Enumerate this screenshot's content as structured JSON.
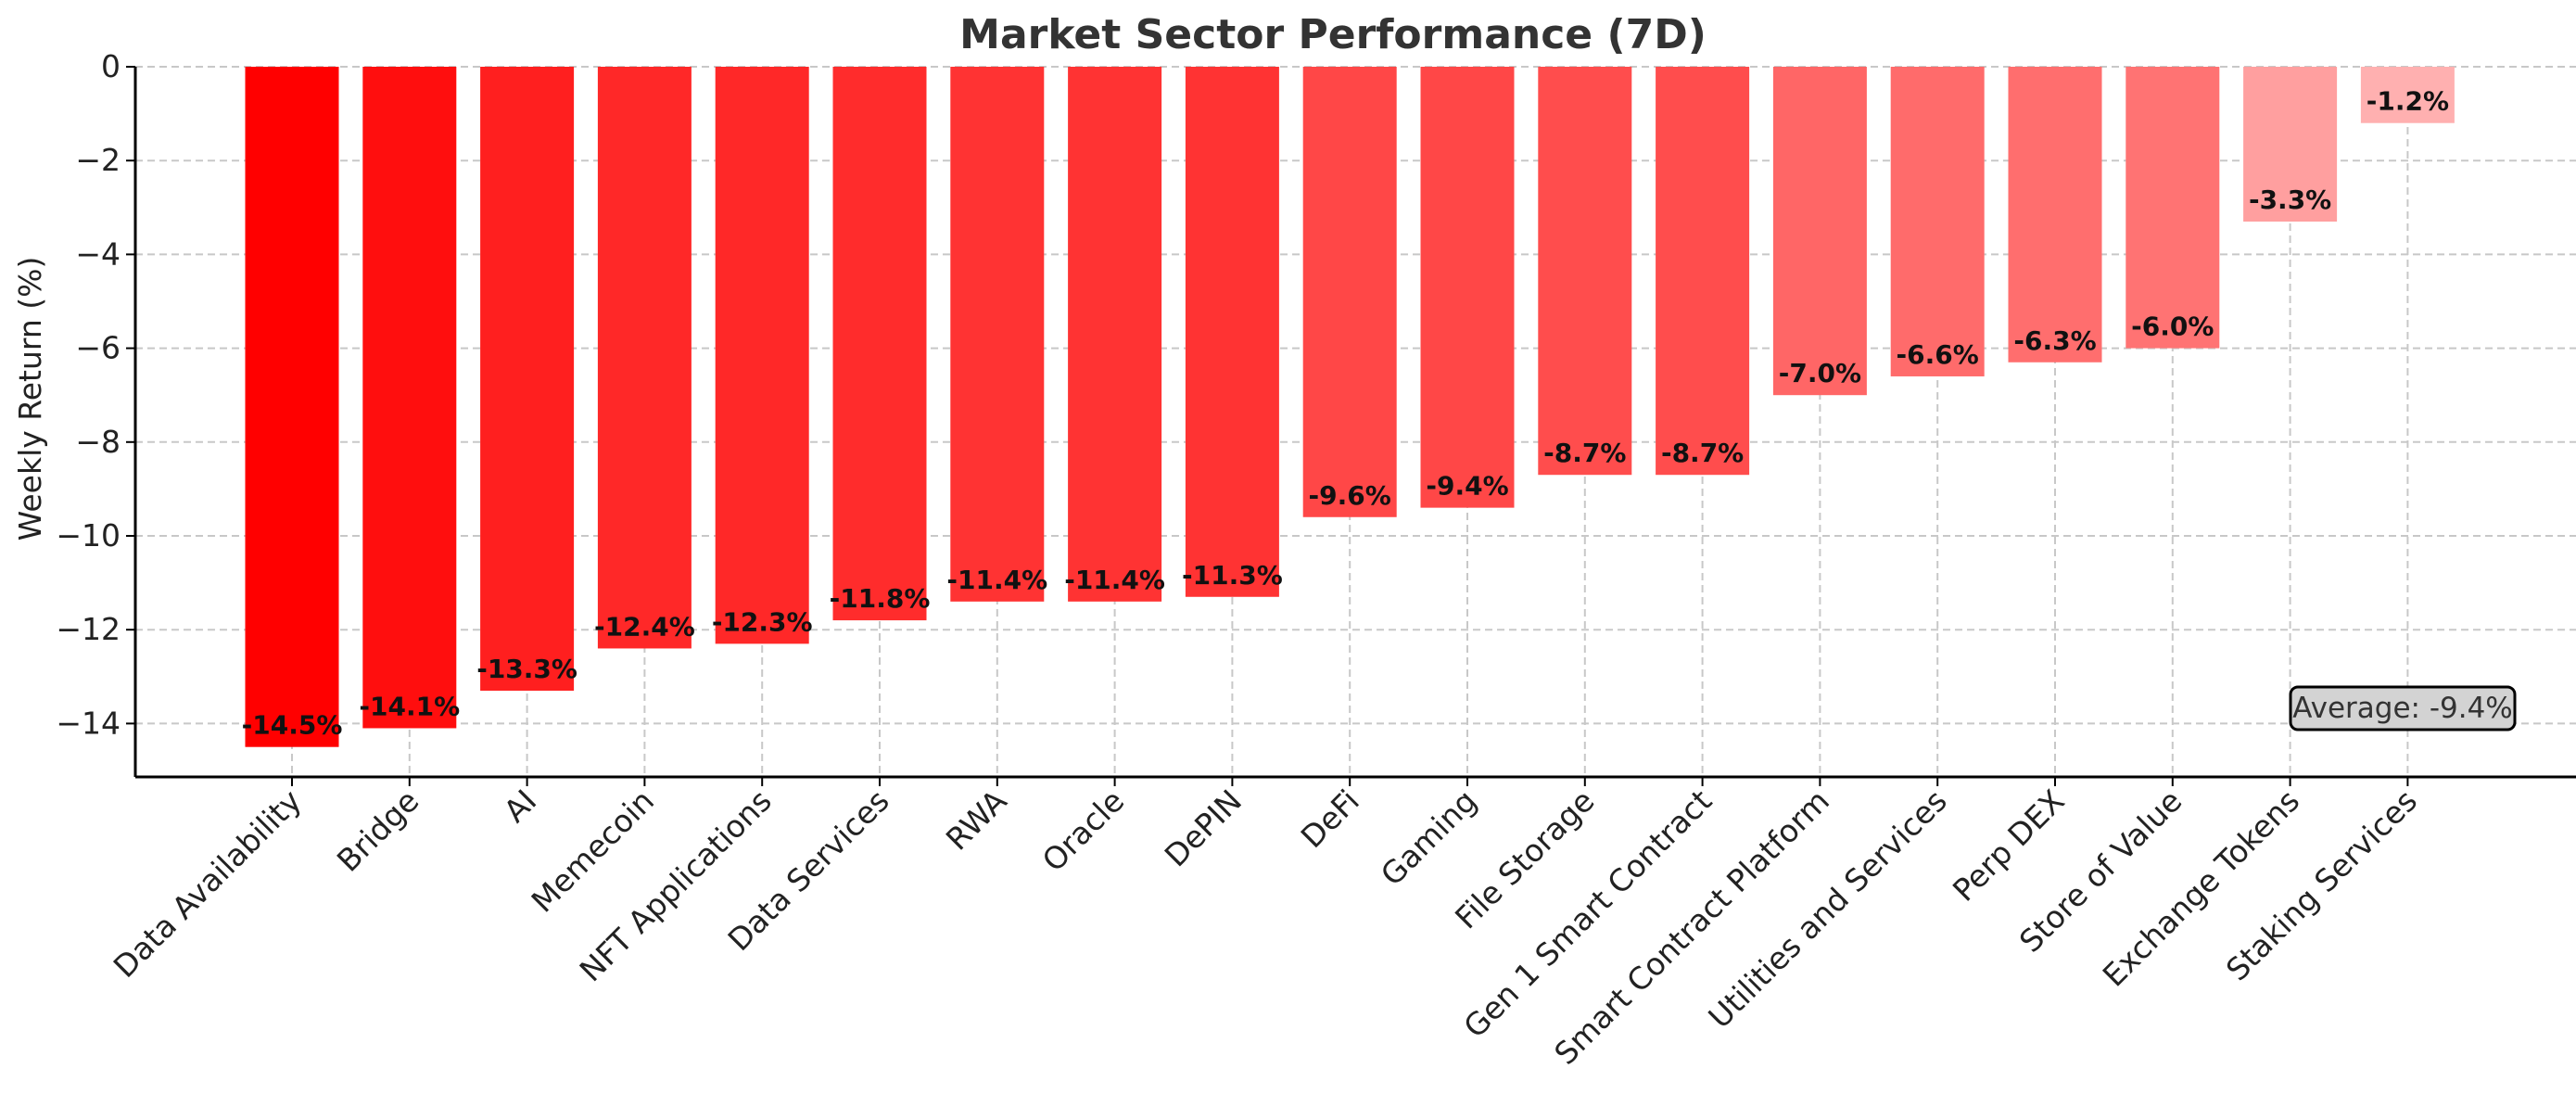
{
  "chart_data": {
    "type": "bar",
    "title": "Market Sector Performance (7D)",
    "xlabel": "",
    "ylabel": "Weekly Return (%)",
    "ylim": [
      -15.2,
      0
    ],
    "yticks": [
      0,
      -2,
      -4,
      -6,
      -8,
      -10,
      -12,
      -14
    ],
    "ytick_labels": [
      "0",
      "−2",
      "−4",
      "−6",
      "−8",
      "−10",
      "−12",
      "−14"
    ],
    "grid": true,
    "categories": [
      "Data Availability",
      "Bridge",
      "AI",
      "Memecoin",
      "NFT Applications",
      "Data Services",
      "RWA",
      "Oracle",
      "DePIN",
      "DeFi",
      "Gaming",
      "File Storage",
      "Gen 1 Smart Contract",
      "Smart Contract Platform",
      "Utilities and Services",
      "Perp DEX",
      "Store of Value",
      "Exchange Tokens",
      "Staking Services"
    ],
    "values": [
      -14.5,
      -14.1,
      -13.3,
      -12.4,
      -12.3,
      -11.8,
      -11.4,
      -11.4,
      -11.3,
      -9.6,
      -9.4,
      -8.7,
      -8.7,
      -7.0,
      -6.6,
      -6.3,
      -6.0,
      -3.3,
      -1.2
    ],
    "value_labels": [
      "-14.5%",
      "-14.1%",
      "-13.3%",
      "-12.4%",
      "-12.3%",
      "-11.8%",
      "-11.4%",
      "-11.4%",
      "-11.3%",
      "-9.6%",
      "-9.4%",
      "-8.7%",
      "-8.7%",
      "-7.0%",
      "-6.6%",
      "-6.3%",
      "-6.0%",
      "-3.3%",
      "-1.2%"
    ],
    "bar_colors": [
      "#ff0000",
      "#ff0e0e",
      "#ff1f1f",
      "#ff2828",
      "#ff2828",
      "#ff2c2c",
      "#ff3333",
      "#ff3333",
      "#ff3333",
      "#ff4747",
      "#ff4747",
      "#ff4d4d",
      "#ff4d4d",
      "#ff6666",
      "#ff6b6b",
      "#ff6e6e",
      "#ff7373",
      "#ff9f9f",
      "#ffb0b0"
    ],
    "annotation": {
      "text": "Average: -9.4%",
      "position": "bottom-right",
      "facecolor": "#d3d3d3",
      "edgecolor": "#000000"
    }
  }
}
